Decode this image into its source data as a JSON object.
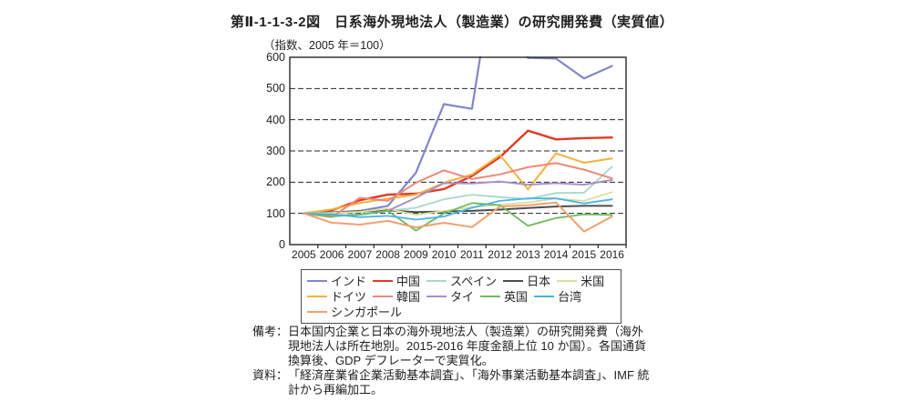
{
  "title": "第Ⅱ-1-1-3-2図　日系海外現地法人（製造業）の研究開発費（実質値）",
  "subtitle": "（指数、2005 年＝100）",
  "notes": [
    {
      "label": "備考：",
      "lines": [
        "日本国内企業と日本の海外現地法人（製造業）の研究開発費（海外",
        "現地法人は所在地別。2015-2016 年度金額上位 10 か国）。各国通貨",
        "換算後、GDP デフレーターで実質化。"
      ]
    },
    {
      "label": "資料：",
      "lines": [
        "「経済産業省企業活動基本調査」、「海外事業活動基本調査」、IMF 統",
        "計から再編加工。"
      ]
    }
  ],
  "chart_data": {
    "type": "line",
    "title": "日系海外現地法人（製造業）の研究開発費（実質値）",
    "unit_note": "指数、2005年＝100",
    "x": [
      2005,
      2006,
      2007,
      2008,
      2009,
      2010,
      2011,
      2012,
      2013,
      2014,
      2015,
      2016
    ],
    "ylim": [
      0,
      600
    ],
    "yticks": [
      0,
      100,
      200,
      300,
      400,
      500,
      600
    ],
    "grid": "horizontal-dashed",
    "legend_position": "bottom-boxed",
    "legend_rows": [
      5,
      5,
      1
    ],
    "clip_above_ymax": true,
    "series": [
      {
        "name": "インド",
        "color": "#8187c9",
        "width": 2.2,
        "values": [
          100,
          103,
          108,
          124,
          230,
          450,
          435,
          1000,
          598,
          596,
          532,
          572
        ]
      },
      {
        "name": "中国",
        "color": "#e03b25",
        "width": 2.4,
        "values": [
          100,
          110,
          142,
          160,
          163,
          178,
          220,
          280,
          365,
          337,
          341,
          343
        ]
      },
      {
        "name": "スペイン",
        "color": "#a8d7c9",
        "width": 1.8,
        "values": [
          100,
          100,
          104,
          108,
          118,
          145,
          160,
          152,
          146,
          165,
          166,
          250
        ]
      },
      {
        "name": "日本",
        "color": "#4d4d4d",
        "width": 2.0,
        "values": [
          100,
          103,
          107,
          110,
          104,
          106,
          108,
          112,
          117,
          122,
          124,
          124
        ]
      },
      {
        "name": "米国",
        "color": "#d7e0a0",
        "width": 1.8,
        "values": [
          100,
          102,
          105,
          115,
          95,
          108,
          120,
          128,
          135,
          148,
          140,
          168
        ]
      },
      {
        "name": "ドイツ",
        "color": "#f5b13d",
        "width": 2.0,
        "values": [
          100,
          113,
          133,
          147,
          160,
          198,
          225,
          287,
          177,
          292,
          262,
          276
        ]
      },
      {
        "name": "韓国",
        "color": "#ee8878",
        "width": 2.0,
        "values": [
          100,
          88,
          150,
          140,
          198,
          238,
          210,
          225,
          248,
          261,
          240,
          212
        ]
      },
      {
        "name": "タイ",
        "color": "#a98fcd",
        "width": 2.0,
        "values": [
          100,
          92,
          96,
          108,
          150,
          197,
          196,
          202,
          192,
          197,
          192,
          207
        ]
      },
      {
        "name": "英国",
        "color": "#6fba5c",
        "width": 1.8,
        "values": [
          100,
          90,
          96,
          108,
          45,
          100,
          133,
          126,
          60,
          85,
          97,
          95
        ]
      },
      {
        "name": "台湾",
        "color": "#45b5e8",
        "width": 1.8,
        "values": [
          100,
          97,
          88,
          92,
          80,
          90,
          118,
          140,
          148,
          148,
          132,
          145
        ]
      },
      {
        "name": "シンガポール",
        "color": "#f2a06e",
        "width": 2.0,
        "values": [
          100,
          70,
          64,
          76,
          55,
          70,
          56,
          122,
          126,
          135,
          42,
          90
        ]
      }
    ]
  }
}
